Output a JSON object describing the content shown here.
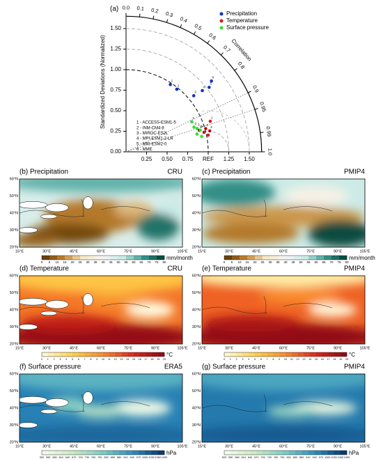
{
  "panel_a": "(a)",
  "chart_data": {
    "type": "taylor",
    "y_label": "Standardized Deviations (Normalized)",
    "angle_label": "Correlation",
    "stdlim": [
      0,
      1.65
    ],
    "xticks": [
      0.25,
      {
        "value": 0.5,
        "label": "0.50"
      },
      0.75,
      {
        "value": 1,
        "label": "REF"
      },
      1.25,
      {
        "value": 1.5,
        "label": "1.50"
      }
    ],
    "yticks": [
      {
        "value": 0,
        "label": "0.00"
      },
      0.25,
      {
        "value": 0.5,
        "label": "0.50"
      },
      0.75,
      {
        "value": 1,
        "label": "1.00"
      },
      1.25,
      {
        "value": 1.5,
        "label": "1.50"
      }
    ],
    "corr_ticks": [
      {
        "value": 0,
        "label": "0.0"
      },
      0.1,
      0.2,
      0.3,
      0.4,
      0.5,
      0.6,
      0.7,
      0.8,
      0.9,
      0.95,
      0.99,
      {
        "value": 1,
        "label": "1.0"
      }
    ],
    "point_labels": [
      "1",
      "2",
      "3",
      "4",
      "5",
      "6"
    ],
    "models": [
      "1 - ACCESS-ESM1-5",
      "2 - INM-CM4-8",
      "3 - MIROC-ES2L",
      "4 - MPI-ESM1-2-LR",
      "5 - MRI-ESM2-0",
      "6 - MME"
    ],
    "series": [
      {
        "name": "Precipitation",
        "color": "#1030c8",
        "std": [
          0.98,
          0.98,
          1.07,
          1.19,
          1.28,
          1.35
        ],
        "correlation": [
          0.55,
          0.63,
          0.77,
          0.78,
          0.79,
          0.77
        ]
      },
      {
        "name": "Temperature",
        "color": "#e01818",
        "std": [
          1.09,
          1.01,
          1.05,
          0.98,
          0.93,
          1.02
        ],
        "correlation": [
          0.94,
          0.96,
          0.97,
          0.97,
          0.96,
          0.98
        ]
      },
      {
        "name": "Surface pressure",
        "color": "#30e030",
        "std": [
          0.88,
          0.88,
          0.91,
          0.94,
          0.89,
          0.94
        ],
        "correlation": [
          0.91,
          0.94,
          0.95,
          0.96,
          0.97,
          0.98
        ]
      }
    ]
  },
  "lat_ticks": [
    "20°N",
    "30°N",
    "40°N",
    "50°N",
    "60°N"
  ],
  "lon_ticks": [
    "15°E",
    "30°E",
    "45°E",
    "60°E",
    "75°E",
    "90°E",
    "105°E"
  ],
  "maps": [
    {
      "title": "(b) Precipitation",
      "source": "CRU",
      "unit": "mm/month",
      "cbar_ticks": [
        0,
        5,
        10,
        15,
        20,
        25,
        30,
        35,
        40,
        45,
        50,
        55,
        60,
        65,
        70,
        75,
        80
      ],
      "colormap": [
        "#543005",
        "#bf812d",
        "#f6e8c3",
        "#f5f5f5",
        "#c7eae5",
        "#35978f",
        "#003c30"
      ]
    },
    {
      "title": "(c) Precipitation",
      "source": "PMIP4",
      "unit": "mm/month",
      "cbar_ticks": [
        0,
        5,
        10,
        15,
        20,
        25,
        30,
        35,
        40,
        45,
        50,
        55,
        60,
        65,
        70,
        75,
        80
      ],
      "colormap": [
        "#543005",
        "#bf812d",
        "#f6e8c3",
        "#f5f5f5",
        "#c7eae5",
        "#35978f",
        "#003c30"
      ]
    },
    {
      "title": "(d) Temperature",
      "source": "CRU",
      "unit": "°C",
      "cbar_ticks": [
        0,
        1,
        2,
        3,
        4,
        5,
        6,
        7,
        8,
        9,
        10,
        11,
        12,
        13,
        14,
        15,
        16,
        17,
        18,
        19,
        20
      ],
      "colormap": [
        "#fffbe0",
        "#ffd24a",
        "#f98a2a",
        "#e0251c",
        "#8a0a14"
      ]
    },
    {
      "title": "(e) Temperature",
      "source": "PMIP4",
      "unit": "°C",
      "cbar_ticks": [
        0,
        1,
        2,
        3,
        4,
        5,
        6,
        7,
        8,
        9,
        10,
        11,
        12,
        13,
        14,
        15,
        16,
        17,
        18,
        19,
        20
      ],
      "colormap": [
        "#fffbe0",
        "#ffd24a",
        "#f98a2a",
        "#e0251c",
        "#8a0a14"
      ]
    },
    {
      "title": "(f) Surface pressure",
      "source": "ERA5",
      "unit": "hPa",
      "cbar_ticks": [
        520,
        550,
        580,
        610,
        640,
        670,
        700,
        730,
        760,
        790,
        820,
        850,
        880,
        910,
        940,
        970,
        1000,
        1030,
        1060,
        1090
      ],
      "colormap": [
        "#f7fcf0",
        "#ccebc5",
        "#7bccc4",
        "#2b8cbe",
        "#08306b"
      ]
    },
    {
      "title": "(g) Surface pressure",
      "source": "PMIP4",
      "unit": "hPa",
      "cbar_ticks": [
        520,
        550,
        580,
        610,
        640,
        670,
        700,
        730,
        760,
        790,
        820,
        850,
        880,
        910,
        940,
        970,
        1000,
        1030,
        1060,
        1090
      ],
      "colormap": [
        "#f7fcf0",
        "#ccebc5",
        "#7bccc4",
        "#2b8cbe",
        "#08306b"
      ]
    }
  ]
}
